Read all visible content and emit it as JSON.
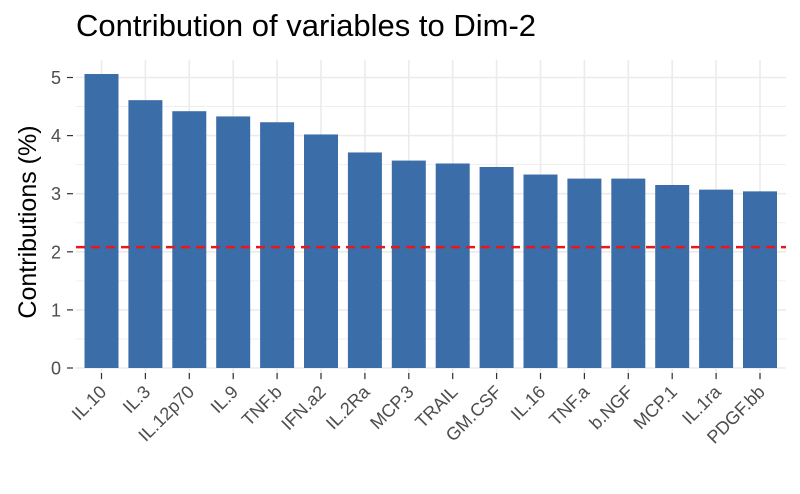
{
  "chart_data": {
    "type": "bar",
    "title": "Contribution of variables to Dim-2",
    "xlabel": "",
    "ylabel": "Contributions (%)",
    "categories": [
      "IL.10",
      "IL.3",
      "IL.12p70",
      "IL.9",
      "TNF.b",
      "IFN.a2",
      "IL.2Ra",
      "MCP.3",
      "TRAIL",
      "GM.CSF",
      "IL.16",
      "TNF.a",
      "b.NGF",
      "MCP.1",
      "IL.1ra",
      "PDGF.bb"
    ],
    "values": [
      5.06,
      4.61,
      4.42,
      4.33,
      4.23,
      4.02,
      3.71,
      3.57,
      3.52,
      3.46,
      3.33,
      3.26,
      3.26,
      3.15,
      3.07,
      3.04
    ],
    "reference_line": 2.08,
    "ylim": [
      0,
      5.15
    ],
    "yticks": [
      0,
      1,
      2,
      3,
      4,
      5
    ],
    "grid": true,
    "colors": {
      "bar": "#3B6EA8",
      "reference_line": "#E41A1C",
      "grid": "#EBEBEB"
    }
  }
}
